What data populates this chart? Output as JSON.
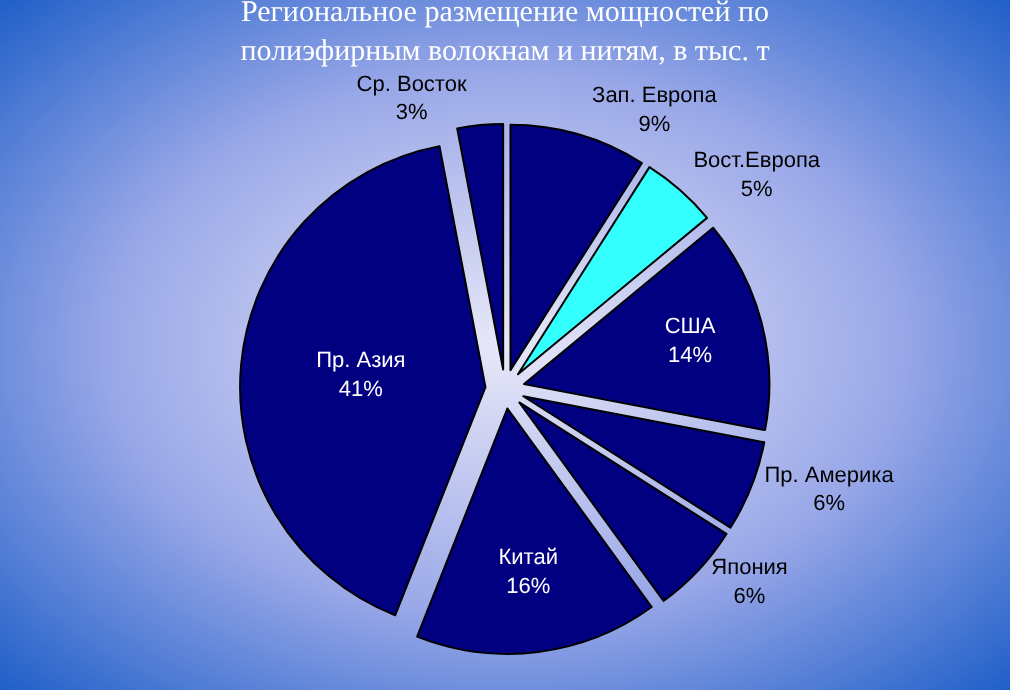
{
  "chart_data": {
    "type": "pie",
    "title": "Региональное размещение мощностей по\nполиэфирным волокнам и нитям, в тыс. т",
    "categories": [
      "Зап. Европа",
      "Вост.Европа",
      "США",
      "Пр. Америка",
      "Япония",
      "Китай",
      "Пр. Азия",
      "Ср. Восток"
    ],
    "values": [
      9,
      5,
      14,
      6,
      6,
      16,
      41,
      3
    ],
    "value_labels": [
      "9%",
      "5%",
      "14%",
      "6%",
      "6%",
      "16%",
      "41%",
      "3%"
    ],
    "colors": [
      "#000080",
      "#33ffff",
      "#000080",
      "#000080",
      "#000080",
      "#000080",
      "#000080",
      "#000080"
    ],
    "legend": false
  }
}
